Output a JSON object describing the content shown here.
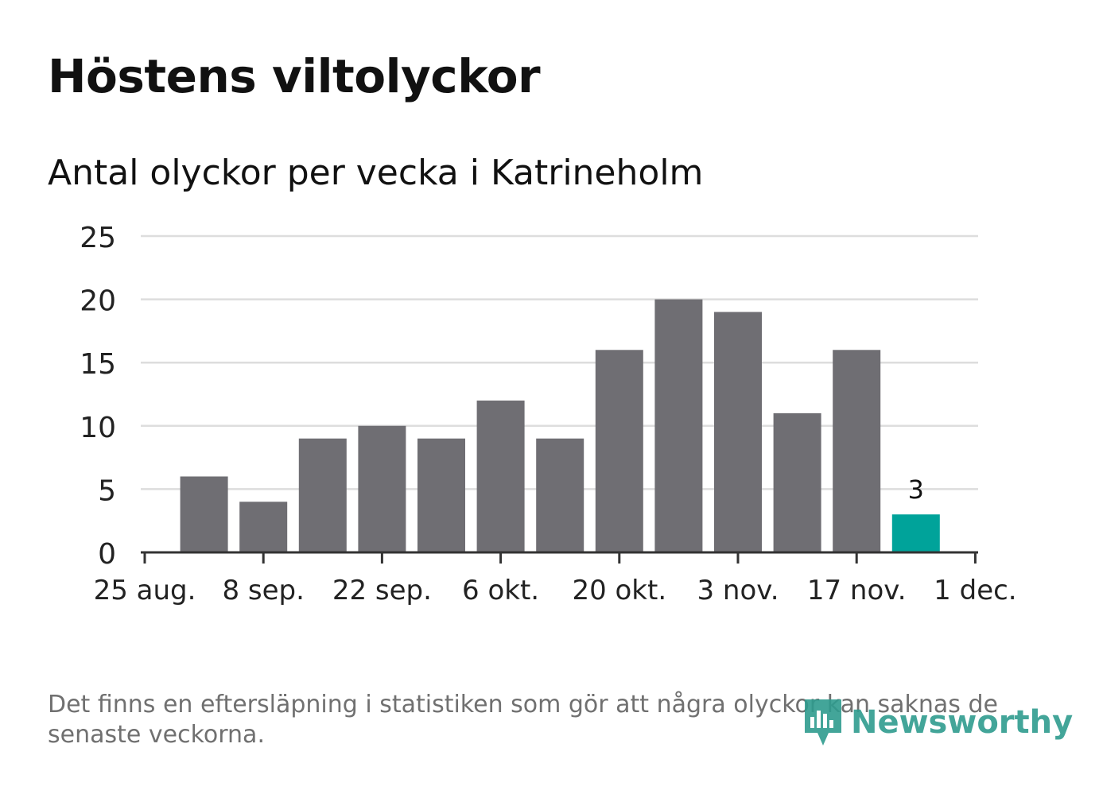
{
  "title": "Höstens viltolyckor",
  "footnote": "Det finns en eftersläpning i statistiken som gör att några olyckor kan saknas de senaste veckorna.",
  "brand": {
    "name": "Newsworthy",
    "icon": "bar-chart-pin-icon"
  },
  "colors": {
    "bar": "#6f6e73",
    "highlight": "#00a39a",
    "grid": "#dddddd",
    "axis": "#333333"
  },
  "chart_data": {
    "type": "bar",
    "title": "Antal olyckor per vecka i Katrineholm",
    "xlabel": "",
    "ylabel": "",
    "ylim": [
      0,
      25
    ],
    "yticks": [
      0,
      5,
      10,
      15,
      20,
      25
    ],
    "xticks": [
      "25 aug.",
      "8 sep.",
      "22 sep.",
      "6 okt.",
      "20 okt.",
      "3 nov.",
      "17 nov.",
      "1 dec."
    ],
    "values": [
      6,
      4,
      9,
      10,
      9,
      12,
      9,
      16,
      20,
      19,
      11,
      16,
      3
    ],
    "highlight_index": 12,
    "data_labels": [
      {
        "index": 12,
        "text": "3"
      }
    ],
    "grid": true
  }
}
